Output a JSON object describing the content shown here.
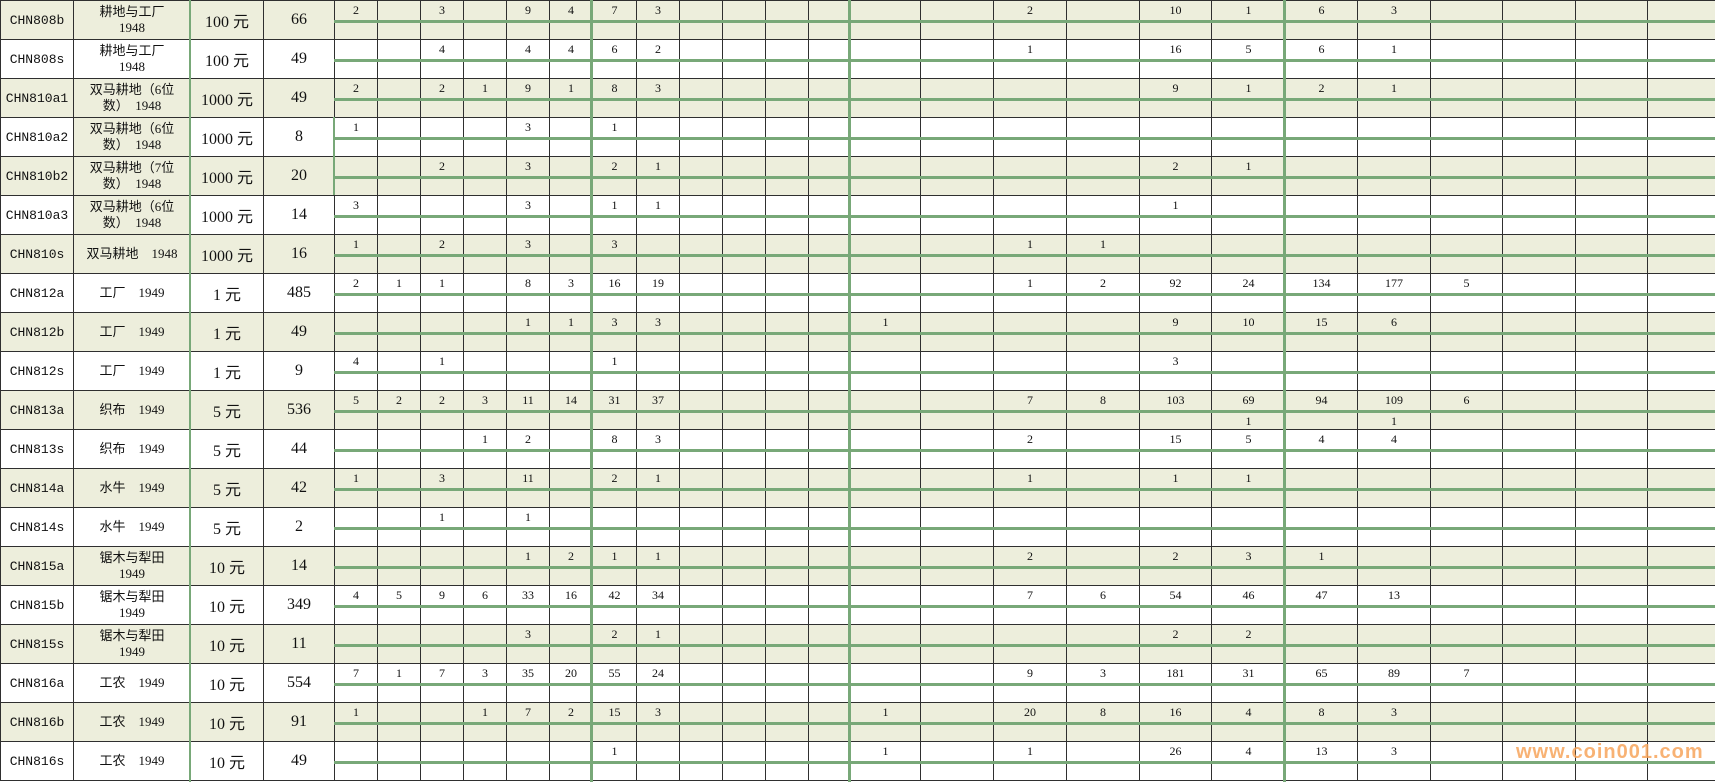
{
  "watermark": "www.coin001.com",
  "colors": {
    "row_shaded": "#EDEEDC",
    "row_plain": "#FFFFFF",
    "green_line": "#78A878",
    "gridline": "#2F2F2F",
    "watermark_orange": "#F7A45C"
  },
  "rows": [
    {
      "id": "CHN808b",
      "desc_lines": [
        "耕地与工厂",
        "1948"
      ],
      "denom": "100 元",
      "total": "66",
      "shaded": true,
      "desc_shaded": true,
      "grades": {
        "0": "2",
        "2": "3",
        "4": "9",
        "5": "4",
        "6": "7",
        "7": "3",
        "14": "2",
        "16": "10",
        "17": "1",
        "18": "6",
        "19": "3"
      },
      "grades2": {}
    },
    {
      "id": "CHN808s",
      "desc_lines": [
        "耕地与工厂",
        "1948"
      ],
      "denom": "100 元",
      "total": "49",
      "shaded": false,
      "desc_shaded": false,
      "grades": {
        "2": "4",
        "4": "4",
        "5": "4",
        "6": "6",
        "7": "2",
        "14": "1",
        "16": "16",
        "17": "5",
        "18": "6",
        "19": "1"
      },
      "grades2": {}
    },
    {
      "id": "CHN810a1",
      "desc_lines": [
        "双马耕地（6位",
        "数）　1948"
      ],
      "denom": "1000 元",
      "total": "49",
      "shaded": true,
      "desc_shaded": true,
      "grades": {
        "0": "2",
        "2": "2",
        "3": "1",
        "4": "9",
        "5": "1",
        "6": "8",
        "7": "3",
        "16": "9",
        "17": "1",
        "18": "2",
        "19": "1"
      },
      "grades2": {}
    },
    {
      "id": "CHN810a2",
      "desc_lines": [
        "双马耕地（6位",
        "数）　1948"
      ],
      "denom": "1000 元",
      "total": "8",
      "shaded": false,
      "desc_shaded": true,
      "grades": {
        "0": "1",
        "4": "3",
        "6": "1"
      },
      "grades2": {}
    },
    {
      "id": "CHN810b2",
      "desc_lines": [
        "双马耕地（7位",
        "数）　1948"
      ],
      "denom": "1000 元",
      "total": "20",
      "shaded": true,
      "desc_shaded": true,
      "grades": {
        "2": "2",
        "4": "3",
        "6": "2",
        "7": "1",
        "16": "2",
        "17": "1"
      },
      "grades2": {}
    },
    {
      "id": "CHN810a3",
      "desc_lines": [
        "双马耕地（6位",
        "数）　1948"
      ],
      "denom": "1000 元",
      "total": "14",
      "shaded": false,
      "desc_shaded": true,
      "grades": {
        "0": "3",
        "4": "3",
        "6": "1",
        "7": "1",
        "16": "1"
      },
      "grades2": {}
    },
    {
      "id": "CHN810s",
      "desc_lines": [
        "双马耕地　1948"
      ],
      "denom": "1000 元",
      "total": "16",
      "shaded": true,
      "desc_shaded": true,
      "grades": {
        "0": "1",
        "2": "2",
        "4": "3",
        "6": "3",
        "14": "1",
        "15": "1"
      },
      "grades2": {}
    },
    {
      "id": "CHN812a",
      "desc_lines": [
        "工厂　1949"
      ],
      "denom": "1 元",
      "total": "485",
      "shaded": false,
      "desc_shaded": false,
      "grades": {
        "0": "2",
        "1": "1",
        "2": "1",
        "4": "8",
        "5": "3",
        "6": "16",
        "7": "19",
        "14": "1",
        "15": "2",
        "16": "92",
        "17": "24",
        "18": "134",
        "19": "177",
        "20": "5"
      },
      "grades2": {}
    },
    {
      "id": "CHN812b",
      "desc_lines": [
        "工厂　1949"
      ],
      "denom": "1 元",
      "total": "49",
      "shaded": true,
      "desc_shaded": true,
      "grades": {
        "4": "1",
        "5": "1",
        "6": "3",
        "7": "3",
        "12": "1",
        "16": "9",
        "17": "10",
        "18": "15",
        "19": "6"
      },
      "grades2": {}
    },
    {
      "id": "CHN812s",
      "desc_lines": [
        "工厂　1949"
      ],
      "denom": "1 元",
      "total": "9",
      "shaded": false,
      "desc_shaded": false,
      "grades": {
        "0": "4",
        "2": "1",
        "6": "1",
        "16": "3"
      },
      "grades2": {}
    },
    {
      "id": "CHN813a",
      "desc_lines": [
        "织布　1949"
      ],
      "denom": "5 元",
      "total": "536",
      "shaded": true,
      "desc_shaded": true,
      "grades": {
        "0": "5",
        "1": "2",
        "2": "2",
        "3": "3",
        "4": "11",
        "5": "14",
        "6": "31",
        "7": "37",
        "14": "7",
        "15": "8",
        "16": "103",
        "17": "69",
        "18": "94",
        "19": "109",
        "20": "6"
      },
      "grades2": {
        "17": "1",
        "19": "1"
      }
    },
    {
      "id": "CHN813s",
      "desc_lines": [
        "织布　1949"
      ],
      "denom": "5 元",
      "total": "44",
      "shaded": false,
      "desc_shaded": false,
      "grades": {
        "3": "1",
        "4": "2",
        "6": "8",
        "7": "3",
        "14": "2",
        "16": "15",
        "17": "5",
        "18": "4",
        "19": "4"
      },
      "grades2": {}
    },
    {
      "id": "CHN814a",
      "desc_lines": [
        "水牛　1949"
      ],
      "denom": "5 元",
      "total": "42",
      "shaded": true,
      "desc_shaded": true,
      "grades": {
        "0": "1",
        "2": "3",
        "4": "11",
        "6": "2",
        "7": "1",
        "14": "1",
        "16": "1",
        "17": "1"
      },
      "grades2": {}
    },
    {
      "id": "CHN814s",
      "desc_lines": [
        "水牛　1949"
      ],
      "denom": "5 元",
      "total": "2",
      "shaded": false,
      "desc_shaded": false,
      "grades": {
        "2": "1",
        "4": "1"
      },
      "grades2": {}
    },
    {
      "id": "CHN815a",
      "desc_lines": [
        "锯木与犁田",
        "1949"
      ],
      "denom": "10 元",
      "total": "14",
      "shaded": true,
      "desc_shaded": true,
      "grades": {
        "4": "1",
        "5": "2",
        "6": "1",
        "7": "1",
        "14": "2",
        "16": "2",
        "17": "3",
        "18": "1"
      },
      "grades2": {}
    },
    {
      "id": "CHN815b",
      "desc_lines": [
        "锯木与犁田",
        "1949"
      ],
      "denom": "10 元",
      "total": "349",
      "shaded": false,
      "desc_shaded": false,
      "grades": {
        "0": "4",
        "1": "5",
        "2": "9",
        "3": "6",
        "4": "33",
        "5": "16",
        "6": "42",
        "7": "34",
        "14": "7",
        "15": "6",
        "16": "54",
        "17": "46",
        "18": "47",
        "19": "13"
      },
      "grades2": {}
    },
    {
      "id": "CHN815s",
      "desc_lines": [
        "锯木与犁田",
        "1949"
      ],
      "denom": "10 元",
      "total": "11",
      "shaded": true,
      "desc_shaded": true,
      "grades": {
        "4": "3",
        "6": "2",
        "7": "1",
        "16": "2",
        "17": "2"
      },
      "grades2": {}
    },
    {
      "id": "CHN816a",
      "desc_lines": [
        "工农　1949"
      ],
      "denom": "10 元",
      "total": "554",
      "shaded": false,
      "desc_shaded": false,
      "grades": {
        "0": "7",
        "1": "1",
        "2": "7",
        "3": "3",
        "4": "35",
        "5": "20",
        "6": "55",
        "7": "24",
        "14": "9",
        "15": "3",
        "16": "181",
        "17": "31",
        "18": "65",
        "19": "89",
        "20": "7"
      },
      "grades2": {}
    },
    {
      "id": "CHN816b",
      "desc_lines": [
        "工农　1949"
      ],
      "denom": "10 元",
      "total": "91",
      "shaded": true,
      "desc_shaded": true,
      "grades": {
        "0": "1",
        "3": "1",
        "4": "7",
        "5": "2",
        "6": "15",
        "7": "3",
        "12": "1",
        "14": "20",
        "15": "8",
        "16": "16",
        "17": "4",
        "18": "8",
        "19": "3"
      },
      "grades2": {}
    },
    {
      "id": "CHN816s",
      "desc_lines": [
        "工农　1949"
      ],
      "denom": "10 元",
      "total": "49",
      "shaded": false,
      "desc_shaded": false,
      "grades": {
        "6": "1",
        "12": "1",
        "14": "1",
        "16": "26",
        "17": "4",
        "18": "13",
        "19": "3"
      },
      "grades2": {}
    }
  ]
}
